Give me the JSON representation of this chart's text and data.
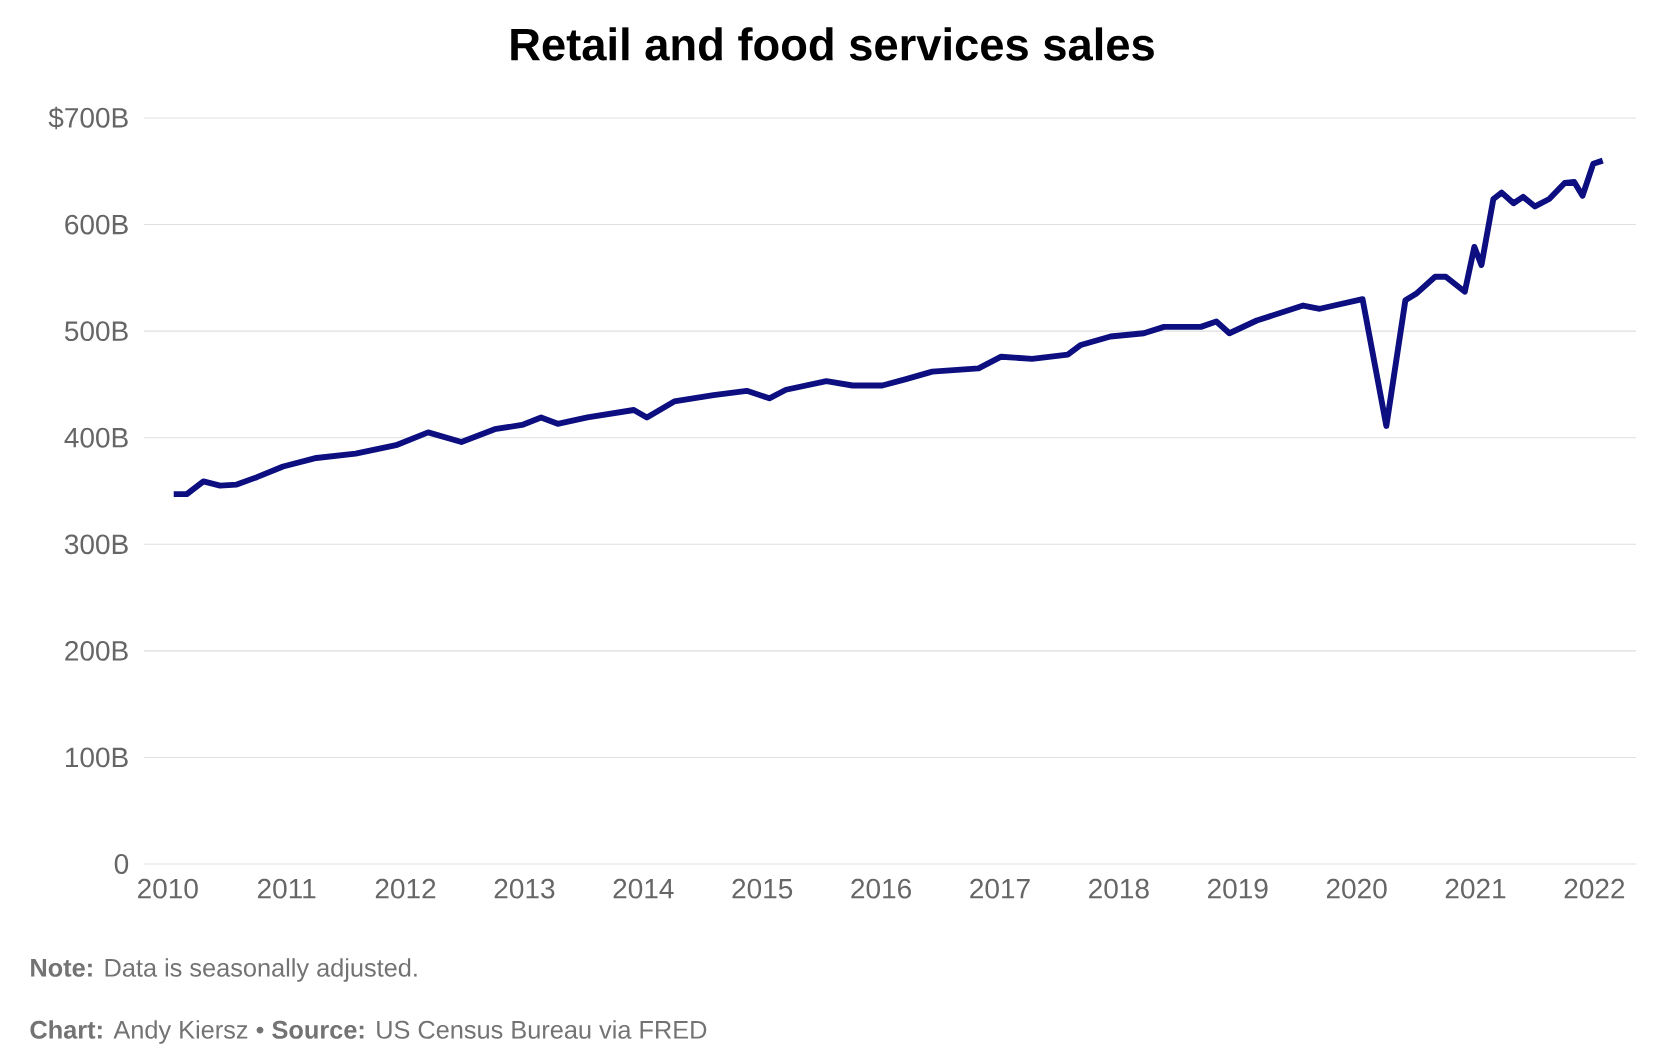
{
  "chart_data": {
    "type": "line",
    "title": "Retail and food services sales",
    "annotations": [
      "**Note:** Data is seasonally adjusted.",
      "**Chart:** Andy Kiersz • **Source:** US Census Bureau via FRED"
    ],
    "x": [
      2010.05,
      2010.16,
      2010.3,
      2010.44,
      2010.58,
      2010.75,
      2010.97,
      2011.25,
      2011.58,
      2011.92,
      2012.19,
      2012.47,
      2012.75,
      2012.98,
      2013.14,
      2013.28,
      2013.53,
      2013.92,
      2014.03,
      2014.26,
      2014.59,
      2014.87,
      2015.06,
      2015.2,
      2015.54,
      2015.76,
      2016.01,
      2016.21,
      2016.43,
      2016.82,
      2017.01,
      2017.27,
      2017.57,
      2017.68,
      2017.93,
      2018.21,
      2018.38,
      2018.69,
      2018.82,
      2018.93,
      2019.16,
      2019.55,
      2019.69,
      2020.05,
      2020.25,
      2020.41,
      2020.5,
      2020.66,
      2020.75,
      2020.91,
      2020.99,
      2021.05,
      2021.15,
      2021.22,
      2021.32,
      2021.4,
      2021.5,
      2021.62,
      2021.75,
      2021.83,
      2021.9,
      2021.99,
      2022.07
    ],
    "values": [
      347,
      347,
      359,
      355,
      356,
      363,
      373,
      381,
      385,
      393,
      405,
      396,
      408,
      412,
      419,
      413,
      419,
      426,
      419,
      434,
      440,
      444,
      437,
      445,
      453,
      449,
      449,
      455,
      462,
      465,
      476,
      474,
      478,
      487,
      495,
      498,
      504,
      504,
      509,
      498,
      510,
      524,
      521,
      530,
      411,
      529,
      535,
      551,
      551,
      537,
      579,
      562,
      624,
      630,
      620,
      626,
      617,
      624,
      639,
      640,
      627,
      657,
      660
    ],
    "color": "#0d0f80",
    "xlim": [
      2009.8,
      2022.35
    ],
    "xticks": [
      2010,
      2011,
      2012,
      2013,
      2014,
      2015,
      2016,
      2017,
      2018,
      2019,
      2020,
      2021,
      2022
    ],
    "ylim": [
      0,
      700
    ],
    "yticks": [
      0,
      {
        "value": 100,
        "label": "100B"
      },
      {
        "value": 200,
        "label": "200B"
      },
      {
        "value": 300,
        "label": "300B"
      },
      {
        "value": 400,
        "label": "400B"
      },
      {
        "value": 500,
        "label": "500B"
      },
      {
        "value": 600,
        "label": "600B"
      },
      {
        "value": 700,
        "label": "$700B"
      }
    ],
    "grid": "y"
  }
}
